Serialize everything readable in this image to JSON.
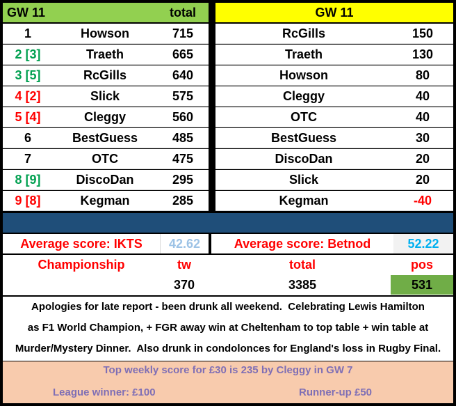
{
  "left_table": {
    "header_gw": "GW 11",
    "header_total": "total",
    "rows": [
      {
        "pos": "1",
        "pos_color": "black",
        "name": "Howson",
        "total": "715"
      },
      {
        "pos": "2 [3]",
        "pos_color": "green",
        "name": "Traeth",
        "total": "665"
      },
      {
        "pos": "3 [5]",
        "pos_color": "green",
        "name": "RcGills",
        "total": "640"
      },
      {
        "pos": "4 [2]",
        "pos_color": "red",
        "name": "Slick",
        "total": "575"
      },
      {
        "pos": "5 [4]",
        "pos_color": "red",
        "name": "Cleggy",
        "total": "560"
      },
      {
        "pos": "6",
        "pos_color": "black",
        "name": "BestGuess",
        "total": "485"
      },
      {
        "pos": "7",
        "pos_color": "black",
        "name": "OTC",
        "total": "475"
      },
      {
        "pos": "8 [9]",
        "pos_color": "green",
        "name": "DiscoDan",
        "total": "295"
      },
      {
        "pos": "9 [8]",
        "pos_color": "red",
        "name": "Kegman",
        "total": "285"
      }
    ]
  },
  "right_table": {
    "header_gw": "GW 11",
    "rows": [
      {
        "name": "RcGills",
        "score": "150"
      },
      {
        "name": "Traeth",
        "score": "130"
      },
      {
        "name": "Howson",
        "score": "80"
      },
      {
        "name": "Cleggy",
        "score": "40"
      },
      {
        "name": "OTC",
        "score": "40"
      },
      {
        "name": "BestGuess",
        "score": "30"
      },
      {
        "name": "DiscoDan",
        "score": "20"
      },
      {
        "name": "Slick",
        "score": "20"
      },
      {
        "name": "Kegman",
        "score": "-40"
      }
    ]
  },
  "averages": {
    "ikts_label": "Average score: IKTS",
    "ikts_value": "42.62",
    "betnod_label": "Average score: Betnod",
    "betnod_value": "52.22"
  },
  "championship": {
    "label": "Championship",
    "col_tw": "tw",
    "col_total": "total",
    "col_pos": "pos",
    "tw_value": "370",
    "total_value": "3385",
    "pos_value": "531"
  },
  "report": {
    "line1": "Apologies for late report - been drunk all weekend.  Celebrating Lewis Hamilton",
    "line2": "as F1 World Champion, + FGR away win at Cheltenham to top table + win table at",
    "line3": "Murder/Mystery Dinner.  Also drunk in condolonces for England's loss in Rugby Final."
  },
  "prizes": {
    "top_weekly": "Top weekly score for £30 is 235 by Cleggy in GW 7",
    "league_winner": "League winner: £100",
    "runner_up": "Runner-up £50"
  },
  "colors": {
    "green_header": "#92d050",
    "yellow_header": "#ffff00",
    "banner": "#1f4e79",
    "up_move": "#00a050",
    "down_move": "#ff0000",
    "prize_bg": "#f8cbad",
    "prize_text": "#7f6fb5"
  }
}
